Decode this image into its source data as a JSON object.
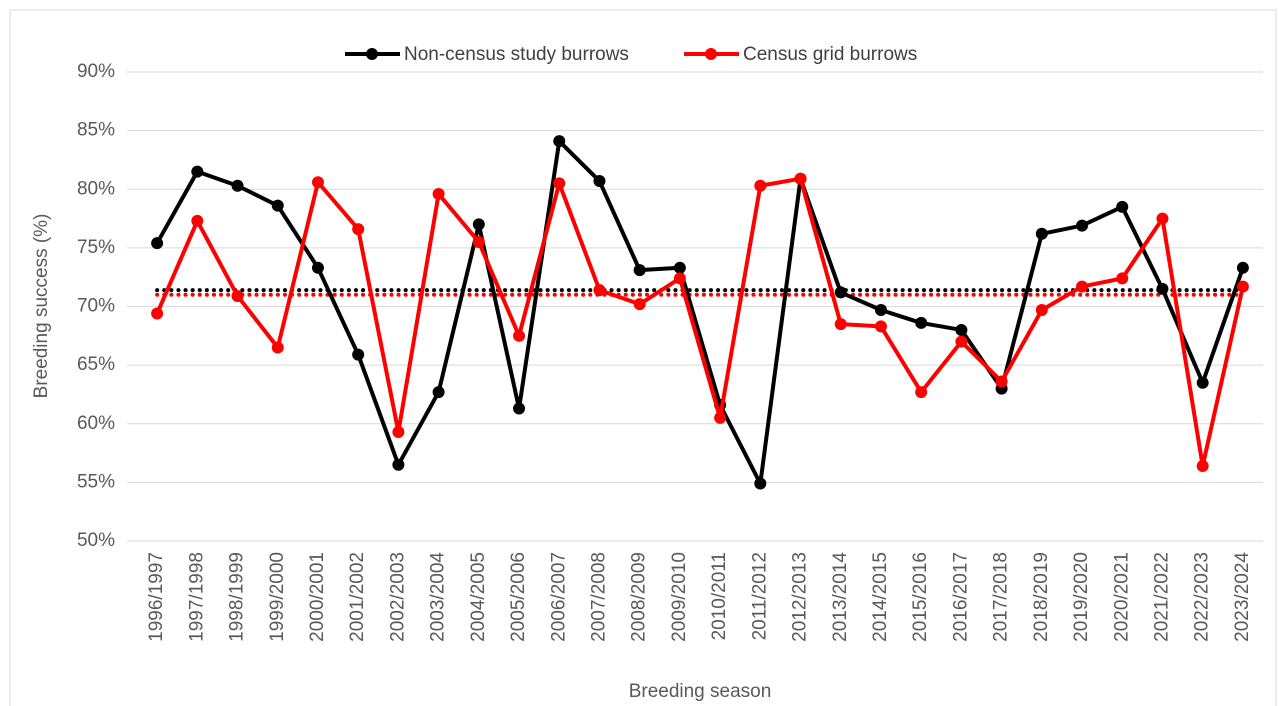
{
  "chart_data": {
    "type": "line",
    "x_label": "Breeding season",
    "y_label": "Breeding success (%)",
    "categories": [
      "1996/1997",
      "1997/1998",
      "1998/1999",
      "1999/2000",
      "2000/2001",
      "2001/2002",
      "2002/2003",
      "2003/2004",
      "2004/2005",
      "2005/2006",
      "2006/2007",
      "2007/2008",
      "2008/2009",
      "2009/2010",
      "2010/2011",
      "2011/2012",
      "2012/2013",
      "2013/2014",
      "2014/2015",
      "2015/2016",
      "2016/2017",
      "2017/2018",
      "2018/2019",
      "2019/2020",
      "2020/2021",
      "2021/2022",
      "2022/2023",
      "2023/2024"
    ],
    "series": [
      {
        "name": "Non-census study burrows",
        "color": "#000000",
        "values": [
          75.4,
          81.5,
          80.3,
          78.6,
          73.3,
          65.9,
          56.5,
          62.7,
          77.0,
          61.3,
          84.1,
          80.7,
          73.1,
          73.3,
          61.6,
          54.9,
          80.9,
          71.2,
          69.7,
          68.6,
          68.0,
          63.0,
          76.2,
          76.9,
          78.5,
          71.5,
          63.5,
          73.3
        ]
      },
      {
        "name": "Census grid burrows",
        "color": "#ff0000",
        "values": [
          69.4,
          77.3,
          70.9,
          66.5,
          80.6,
          76.6,
          59.3,
          79.6,
          75.5,
          67.5,
          80.5,
          71.4,
          70.2,
          72.4,
          60.5,
          80.3,
          80.9,
          68.5,
          68.3,
          62.7,
          67.0,
          63.6,
          69.7,
          71.7,
          72.4,
          77.5,
          56.4,
          71.7
        ]
      }
    ],
    "reference_lines": [
      {
        "value": 71.4,
        "color": "#000000"
      },
      {
        "value": 71.0,
        "color": "#ff0000"
      }
    ],
    "ylim": [
      50,
      90
    ],
    "yticks": [
      {
        "value": 50,
        "label": "50%"
      },
      {
        "value": 55,
        "label": "55%"
      },
      {
        "value": 60,
        "label": "60%"
      },
      {
        "value": 65,
        "label": "65%"
      },
      {
        "value": 70,
        "label": "70%"
      },
      {
        "value": 75,
        "label": "75%"
      },
      {
        "value": 80,
        "label": "80%"
      },
      {
        "value": 85,
        "label": "85%"
      },
      {
        "value": 90,
        "label": "90%"
      }
    ],
    "grid": true,
    "legend": "top"
  }
}
